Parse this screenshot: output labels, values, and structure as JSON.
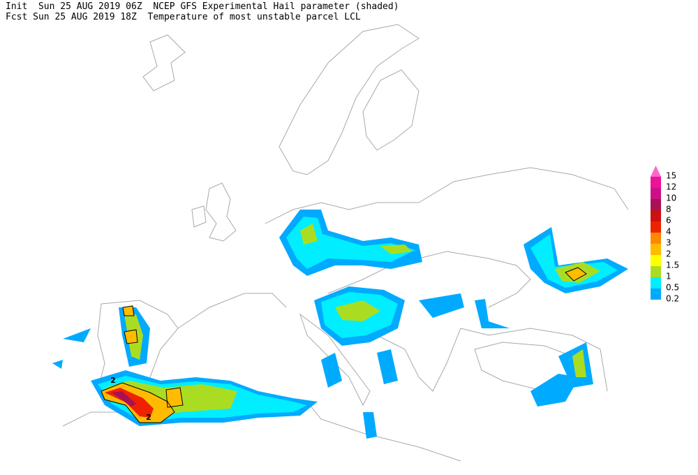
{
  "header": {
    "line1": "Init  Sun 25 AUG 2019 06Z  NCEP GFS Experimental Hail parameter (shaded)",
    "line2": "Fcst Sun 25 AUG 2019 18Z  Temperature of most unstable parcel LCL"
  },
  "legend": {
    "levels": [
      {
        "label": "15",
        "color": "#ff66cc"
      },
      {
        "label": "12",
        "color": "#ee1199"
      },
      {
        "label": "10",
        "color": "#cc1188"
      },
      {
        "label": "8",
        "color": "#aa1155"
      },
      {
        "label": "6",
        "color": "#cc1111"
      },
      {
        "label": "4",
        "color": "#ee2200"
      },
      {
        "label": "3",
        "color": "#ff8800"
      },
      {
        "label": "2",
        "color": "#ffbb00"
      },
      {
        "label": "1.5",
        "color": "#ffff00"
      },
      {
        "label": "1",
        "color": "#aadd22"
      },
      {
        "label": "0.5",
        "color": "#00eeff"
      },
      {
        "label": "0.2",
        "color": "#00aaff"
      }
    ]
  },
  "contour_labels": [
    "2",
    "2"
  ]
}
